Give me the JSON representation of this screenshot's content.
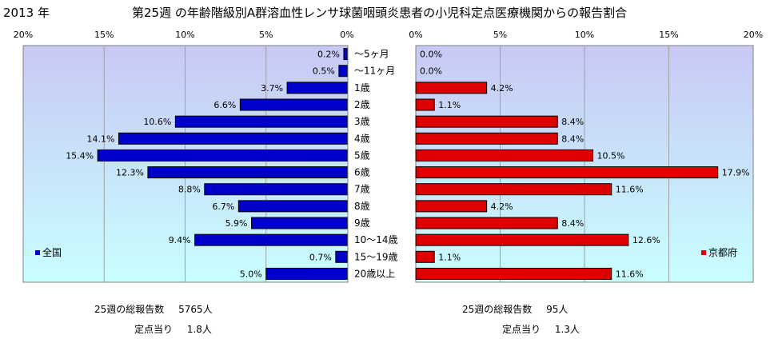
{
  "year_label": "2013 年",
  "title": "第25週 の年齢階級別A群溶血性レンサ球菌咽頭炎患者の小児科定点医療機関からの報告割合",
  "chart_data": {
    "type": "bar",
    "orientation": "horizontal",
    "categories": [
      "～5ヶ月",
      "～11ヶ月",
      "1歳",
      "2歳",
      "3歳",
      "4歳",
      "5歳",
      "6歳",
      "7歳",
      "8歳",
      "9歳",
      "10～14歳",
      "15～19歳",
      "20歳以上"
    ],
    "x_ticks": [
      "20%",
      "15%",
      "10%",
      "5%",
      "0%"
    ],
    "x_ticks_right": [
      "0%",
      "5%",
      "10%",
      "15%",
      "20%"
    ],
    "xlim": [
      0,
      20
    ],
    "grid": true,
    "series": [
      {
        "name": "全国",
        "color": "#0000cc",
        "values": [
          0.2,
          0.5,
          3.7,
          6.6,
          10.6,
          14.1,
          15.4,
          12.3,
          8.8,
          6.7,
          5.9,
          9.4,
          0.7,
          5.0
        ],
        "labels": [
          "0.2%",
          "0.5%",
          "3.7%",
          "6.6%",
          "10.6%",
          "14.1%",
          "15.4%",
          "12.3%",
          "8.8%",
          "6.7%",
          "5.9%",
          "9.4%",
          "0.7%",
          "5.0%"
        ]
      },
      {
        "name": "京都府",
        "color": "#dd0000",
        "values": [
          0.0,
          0.0,
          4.2,
          1.1,
          8.4,
          8.4,
          10.5,
          17.9,
          11.6,
          4.2,
          8.4,
          12.6,
          1.1,
          11.6
        ],
        "labels": [
          "0.0%",
          "0.0%",
          "4.2%",
          "1.1%",
          "8.4%",
          "8.4%",
          "10.5%",
          "17.9%",
          "11.6%",
          "4.2%",
          "8.4%",
          "12.6%",
          "1.1%",
          "11.6%"
        ]
      }
    ],
    "legend_placement": [
      "bottom-left",
      "bottom-right"
    ]
  },
  "stats": {
    "left": {
      "total_label": "25週の総報告数",
      "total_value": "5765人",
      "per_label": "定点当り",
      "per_value": "1.8人"
    },
    "right": {
      "total_label": "25週の総報告数",
      "total_value": "95人",
      "per_label": "定点当り",
      "per_value": "1.3人"
    }
  },
  "colors": {
    "panel_top": "#c8c8f5",
    "panel_bottom": "#c8ffff",
    "grid": "#a0a0a0"
  }
}
